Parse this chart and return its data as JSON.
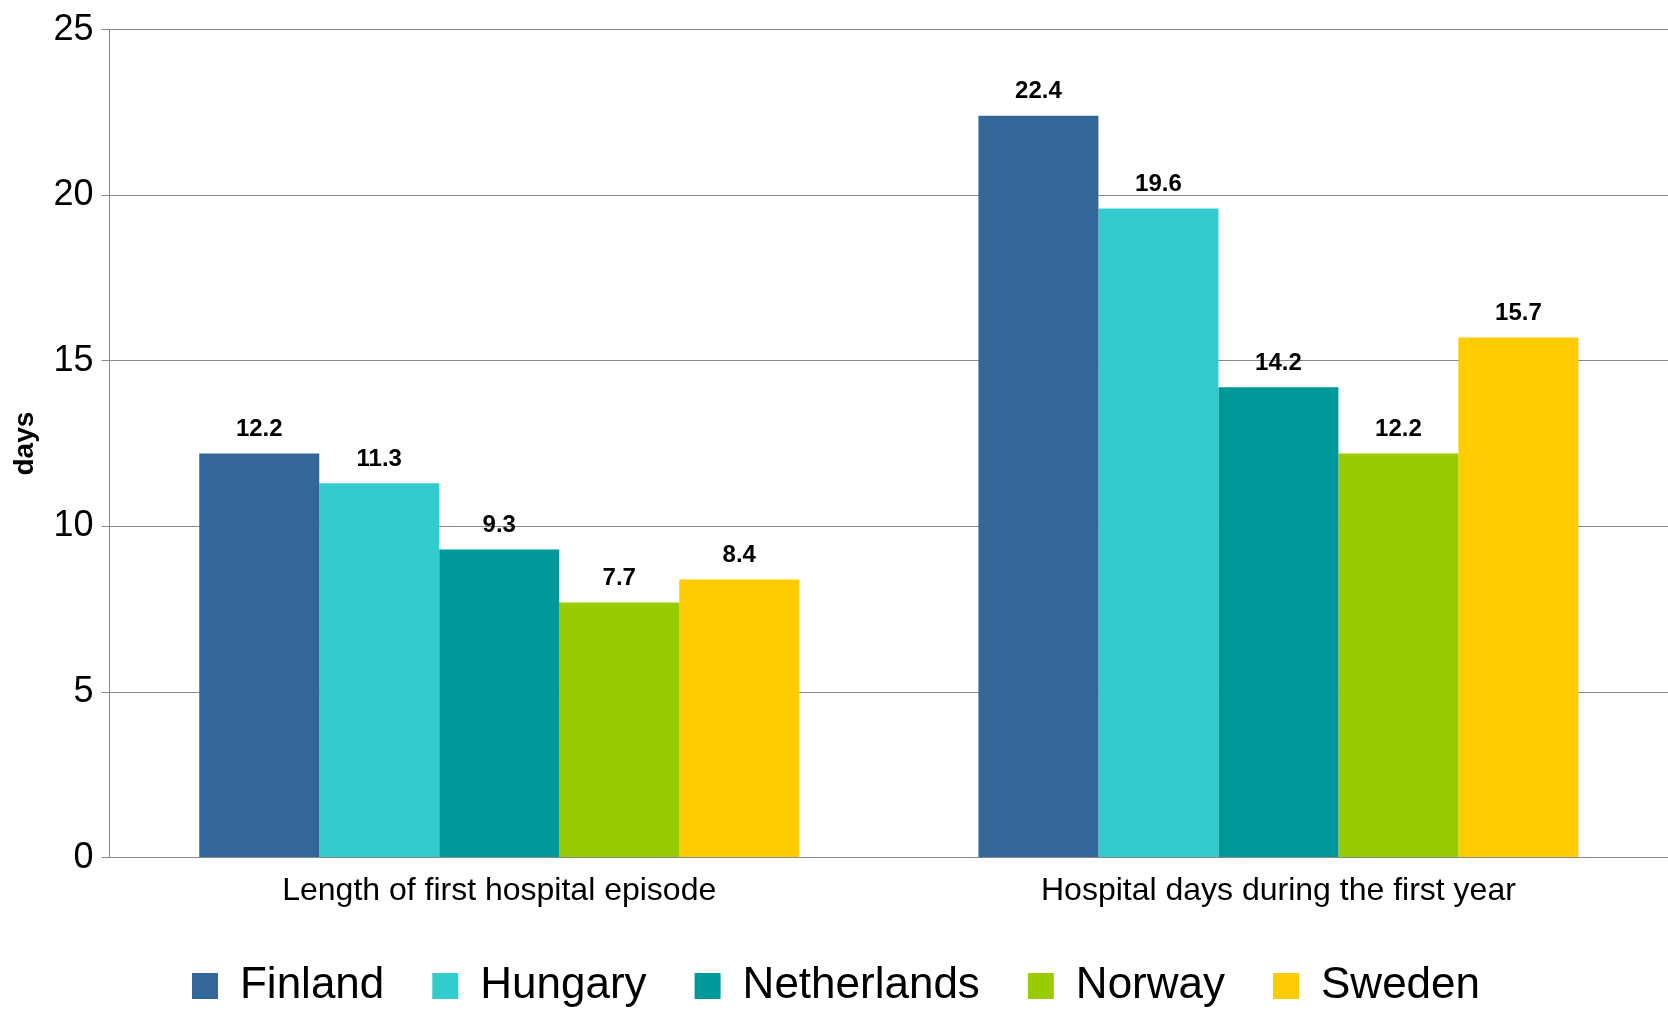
{
  "chart_data": {
    "type": "bar",
    "ylabel": "days",
    "categories": [
      "Length of first hospital episode",
      "Hospital days during the first year"
    ],
    "series": [
      {
        "name": "Finland",
        "color": "#336699",
        "values": [
          12.2,
          22.4
        ]
      },
      {
        "name": "Hungary",
        "color": "#33cccc",
        "values": [
          11.3,
          19.6
        ]
      },
      {
        "name": "Netherlands",
        "color": "#009999",
        "values": [
          9.3,
          14.2
        ]
      },
      {
        "name": "Norway",
        "color": "#99cc00",
        "values": [
          7.7,
          12.2
        ]
      },
      {
        "name": "Sweden",
        "color": "#ffcc00",
        "values": [
          8.4,
          15.7
        ]
      }
    ],
    "ylim": [
      0,
      25
    ],
    "yticks": [
      0,
      5,
      10,
      15,
      20,
      25
    ],
    "grid": "y",
    "legend": "bottom",
    "data_labels": true
  }
}
